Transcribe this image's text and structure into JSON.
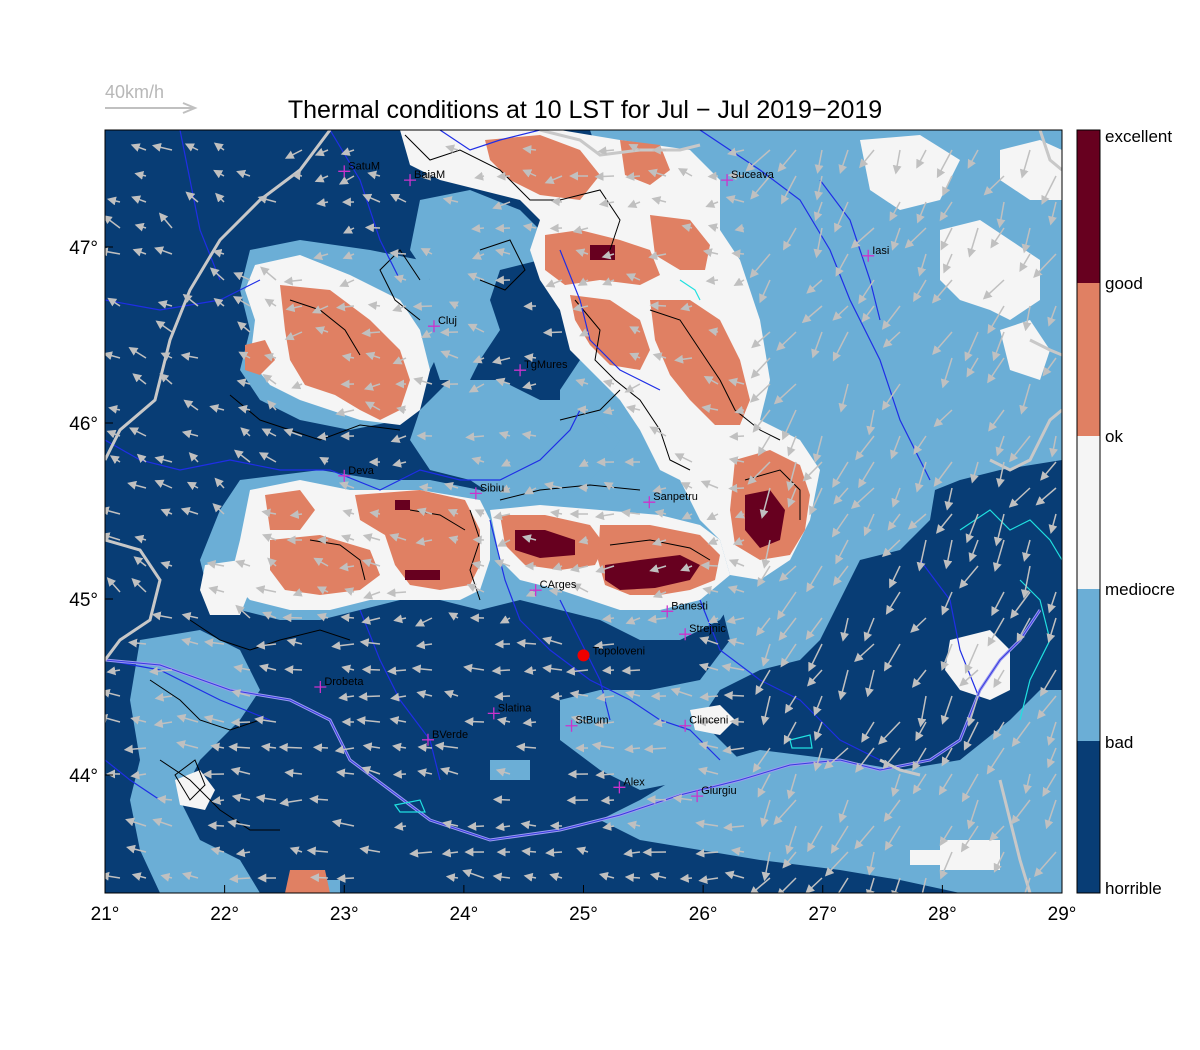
{
  "title": "Thermal conditions at 10 LST for Jul − Jul  2019−2019",
  "wind_reference": {
    "label": "40km/h"
  },
  "x_ticks": [
    "21°",
    "22°",
    "23°",
    "24°",
    "25°",
    "26°",
    "27°",
    "28°",
    "29°"
  ],
  "y_ticks": [
    "47°",
    "46°",
    "45°",
    "44°"
  ],
  "colorbar": {
    "labels": [
      "excellent",
      "good",
      "ok",
      "mediocre",
      "bad",
      "horrible"
    ],
    "colors": [
      "#67001f",
      "#e08063",
      "#f5f5f5",
      "#6baed6",
      "#083d75"
    ]
  },
  "cities": [
    {
      "name": "SatuM",
      "lon": 23.0,
      "lat": 47.43
    },
    {
      "name": "BaiaM",
      "lon": 23.55,
      "lat": 47.38
    },
    {
      "name": "Suceava",
      "lon": 26.2,
      "lat": 47.38
    },
    {
      "name": "Iasi",
      "lon": 27.38,
      "lat": 46.95
    },
    {
      "name": "Cluj",
      "lon": 23.75,
      "lat": 46.55
    },
    {
      "name": "TgMures",
      "lon": 24.47,
      "lat": 46.3
    },
    {
      "name": "Deva",
      "lon": 23.0,
      "lat": 45.7
    },
    {
      "name": "Sibiu",
      "lon": 24.1,
      "lat": 45.6
    },
    {
      "name": "Sanpetru",
      "lon": 25.55,
      "lat": 45.55
    },
    {
      "name": "CArges",
      "lon": 24.6,
      "lat": 45.05
    },
    {
      "name": "Banesti",
      "lon": 25.7,
      "lat": 44.93
    },
    {
      "name": "Strejnic",
      "lon": 25.85,
      "lat": 44.8
    },
    {
      "name": "Drobeta",
      "lon": 22.8,
      "lat": 44.5
    },
    {
      "name": "Slatina",
      "lon": 24.25,
      "lat": 44.35
    },
    {
      "name": "StBum",
      "lon": 24.9,
      "lat": 44.28
    },
    {
      "name": "Clinceni",
      "lon": 25.85,
      "lat": 44.28
    },
    {
      "name": "BVerde",
      "lon": 23.7,
      "lat": 44.2
    },
    {
      "name": "Alex",
      "lon": 25.3,
      "lat": 43.93
    },
    {
      "name": "Giurgiu",
      "lon": 25.95,
      "lat": 43.88
    }
  ],
  "site": {
    "name": "Topoloveni",
    "lon": 25.0,
    "lat": 44.68
  },
  "colors": {
    "horrible": "#083d75",
    "bad": "#6baed6",
    "mediocre": "#f5f5f5",
    "ok": "#e08063",
    "excellent": "#67001f",
    "city_marker": "#cc33cc",
    "site_marker": "#ee0000",
    "wind_arrow": "#c0c0c0",
    "river": "#1f2ee6",
    "border": "#c8c8c8"
  }
}
